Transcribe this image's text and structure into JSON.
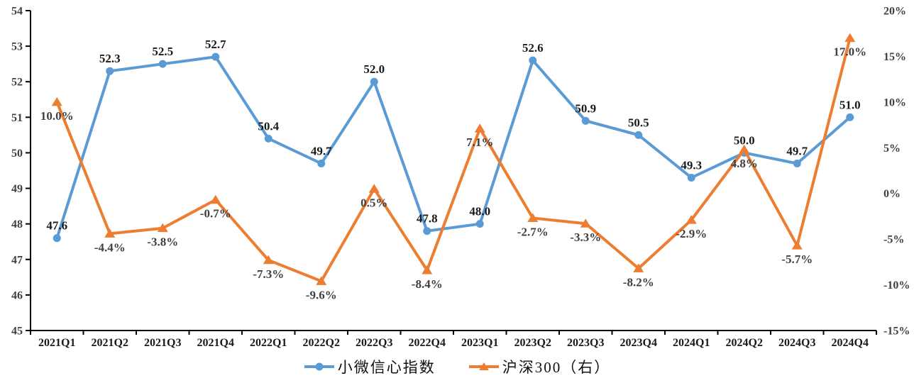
{
  "chart_data": {
    "type": "line",
    "categories": [
      "2021Q1",
      "2021Q2",
      "2021Q3",
      "2021Q4",
      "2022Q1",
      "2022Q2",
      "2022Q3",
      "2022Q4",
      "2023Q1",
      "2023Q2",
      "2023Q3",
      "2023Q4",
      "2024Q1",
      "2024Q2",
      "2024Q3",
      "2024Q4"
    ],
    "series": [
      {
        "name": "小微信心指数",
        "axis": "left",
        "color": "#5B9BD5",
        "marker": "circle",
        "label_color": "#1a1a1a",
        "label_position": "above",
        "values": [
          47.6,
          52.3,
          52.5,
          52.7,
          50.4,
          49.7,
          52.0,
          47.8,
          48.0,
          52.6,
          50.9,
          50.5,
          49.3,
          50.0,
          49.7,
          51.0
        ],
        "labels": [
          "47.6",
          "52.3",
          "52.5",
          "52.7",
          "50.4",
          "49.7",
          "52.0",
          "47.8",
          "48.0",
          "52.6",
          "50.9",
          "50.5",
          "49.3",
          "50.0",
          "49.7",
          "51.0"
        ]
      },
      {
        "name": "沪深300（右）",
        "axis": "right",
        "color": "#ED7D31",
        "marker": "triangle",
        "label_color": "#404040",
        "label_position": "below",
        "values": [
          10.0,
          -4.4,
          -3.8,
          -0.7,
          -7.3,
          -9.6,
          0.5,
          -8.4,
          7.1,
          -2.7,
          -3.3,
          -8.2,
          -2.9,
          4.8,
          -5.7,
          17.0
        ],
        "labels": [
          "10.0%",
          "-4.4%",
          "-3.8%",
          "-0.7%",
          "-7.3%",
          "-9.6%",
          "0.5%",
          "-8.4%",
          "7.1%",
          "-2.7%",
          "-3.3%",
          "-8.2%",
          "-2.9%",
          "4.8%",
          "-5.7%",
          "17.0%"
        ]
      }
    ],
    "left_axis": {
      "min": 45,
      "max": 54,
      "step": 1,
      "ticks": [
        "45",
        "46",
        "47",
        "48",
        "49",
        "50",
        "51",
        "52",
        "53",
        "54"
      ]
    },
    "right_axis": {
      "min": -15,
      "max": 20,
      "step": 5,
      "ticks": [
        "-15%",
        "-10%",
        "-5%",
        "0%",
        "5%",
        "10%",
        "15%",
        "20%"
      ]
    },
    "grid": false,
    "legend_position": "bottom",
    "axis_color": "#000000",
    "tick_label_color": "#404040",
    "x_label_color": "#1a1a1a"
  },
  "legend": {
    "series1_label": "小微信心指数",
    "series2_label": "沪深300（右）"
  }
}
